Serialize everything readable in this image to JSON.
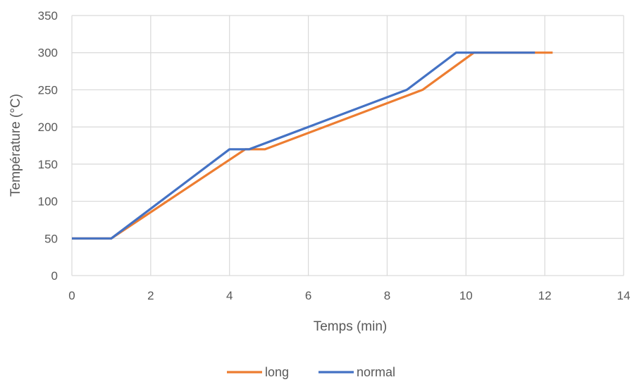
{
  "chart_data": {
    "type": "line",
    "title": "",
    "xlabel": "Temps (min)",
    "ylabel": "Température (°C)",
    "xlim": [
      0,
      14
    ],
    "ylim": [
      0,
      350
    ],
    "x_ticks": [
      "0",
      "2",
      "4",
      "6",
      "8",
      "10",
      "12",
      "14"
    ],
    "y_ticks": [
      "0",
      "50",
      "100",
      "150",
      "200",
      "250",
      "300",
      "350"
    ],
    "grid": true,
    "legend_position": "bottom",
    "series": [
      {
        "name": "long",
        "color": "#ED7D31",
        "points": [
          [
            0,
            50
          ],
          [
            1,
            50
          ],
          [
            4.4,
            170
          ],
          [
            4.9,
            170
          ],
          [
            8.9,
            250
          ],
          [
            10.2,
            300
          ],
          [
            12.2,
            300
          ]
        ]
      },
      {
        "name": "normal",
        "color": "#4472C4",
        "points": [
          [
            0,
            50
          ],
          [
            1,
            50
          ],
          [
            4,
            170
          ],
          [
            4.5,
            170
          ],
          [
            8.5,
            250
          ],
          [
            9.75,
            300
          ],
          [
            11.75,
            300
          ]
        ]
      }
    ]
  }
}
